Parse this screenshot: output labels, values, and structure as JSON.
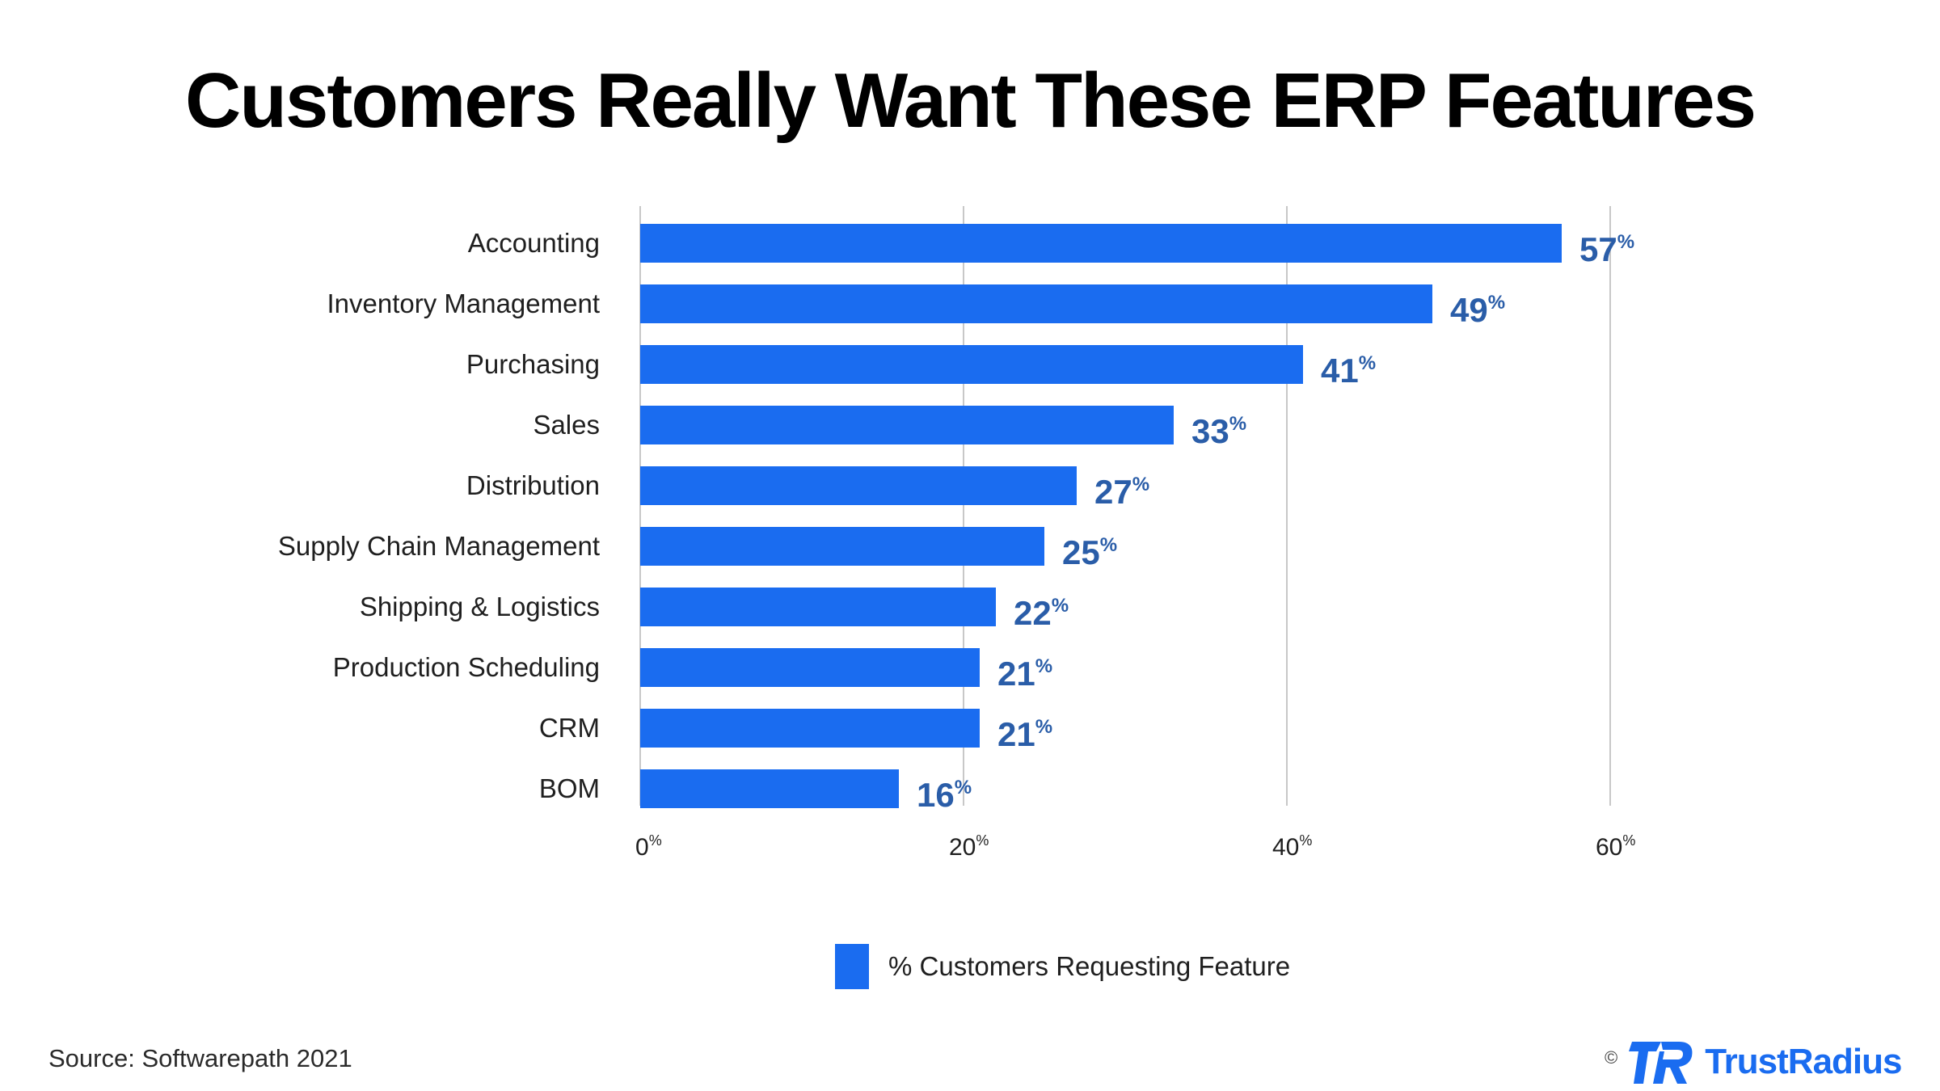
{
  "chart_data": {
    "type": "bar",
    "orientation": "horizontal",
    "title": "Customers Really Want These ERP Features",
    "categories": [
      "Accounting",
      "Inventory Management",
      "Purchasing",
      "Sales",
      "Distribution",
      "Supply Chain Management",
      "Shipping & Logistics",
      "Production Scheduling",
      "CRM",
      "BOM"
    ],
    "series": [
      {
        "name": "% Customers Requesting Feature",
        "values": [
          57,
          49,
          41,
          33,
          27,
          25,
          22,
          21,
          21,
          16
        ],
        "color": "#1a6cf0"
      }
    ],
    "value_suffix": "%",
    "xlim": [
      0,
      60
    ],
    "x_ticks": [
      0,
      20,
      40,
      60
    ],
    "grid": "vertical",
    "legend_position": "bottom-center"
  },
  "footer": {
    "source": "Source: Softwarepath 2021",
    "copyright": "©",
    "brand": "TrustRadius"
  },
  "colors": {
    "bar": "#1a6cf0",
    "value_label": "#2a5da8",
    "grid": "#c8c8c8",
    "brand": "#1a6cf0"
  }
}
